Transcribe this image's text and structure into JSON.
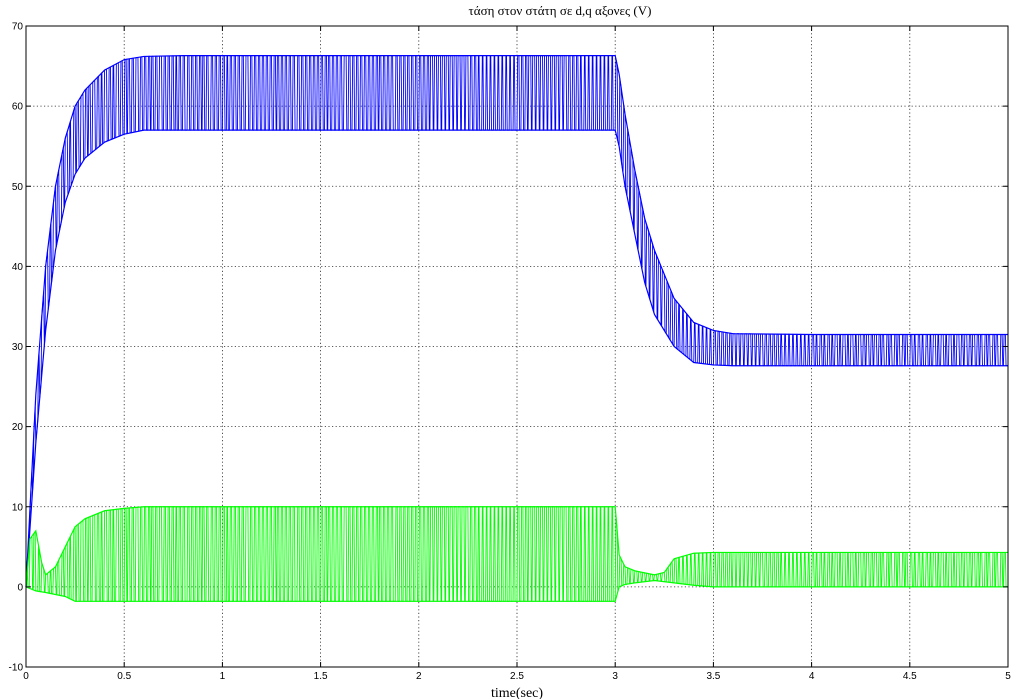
{
  "chart_data": {
    "type": "line",
    "title": "τάση στον στάτη σε d,q αξονες  (V)",
    "xlabel": "time(sec)",
    "ylabel": "",
    "xlim": [
      0,
      5
    ],
    "ylim": [
      -10,
      70
    ],
    "xticks": [
      0,
      0.5,
      1,
      1.5,
      2,
      2.5,
      3,
      3.5,
      4,
      4.5,
      5
    ],
    "xtick_labels": [
      "0",
      "0.5",
      "1",
      "1.5",
      "2",
      "2.5",
      "3",
      "3.5",
      "4",
      "4.5",
      "5"
    ],
    "yticks": [
      -10,
      0,
      10,
      20,
      30,
      40,
      50,
      60,
      70
    ],
    "ytick_labels": [
      "-10",
      "0",
      "10",
      "20",
      "30",
      "40",
      "50",
      "60",
      "70"
    ],
    "grid": true,
    "series": [
      {
        "color": "#0000ff",
        "description": "oscillating signal; upper envelope / lower envelope in V",
        "upper_envelope": {
          "x": [
            0,
            0.05,
            0.1,
            0.15,
            0.2,
            0.25,
            0.3,
            0.4,
            0.5,
            0.6,
            0.8,
            1.0,
            2.0,
            3.0,
            3.02,
            3.05,
            3.1,
            3.15,
            3.2,
            3.3,
            3.4,
            3.5,
            3.6,
            4.0,
            5.0
          ],
          "y": [
            0,
            24,
            40,
            50,
            56,
            60,
            62,
            64.5,
            65.8,
            66.2,
            66.3,
            66.3,
            66.3,
            66.3,
            64,
            59,
            52,
            46,
            42,
            36,
            33,
            32,
            31.6,
            31.5,
            31.5
          ]
        },
        "lower_envelope": {
          "x": [
            0,
            0.05,
            0.1,
            0.15,
            0.2,
            0.25,
            0.3,
            0.4,
            0.5,
            0.6,
            0.8,
            1.0,
            2.0,
            3.0,
            3.02,
            3.05,
            3.1,
            3.15,
            3.2,
            3.3,
            3.4,
            3.5,
            3.6,
            4.0,
            5.0
          ],
          "y": [
            0,
            18,
            32,
            42,
            48,
            51.5,
            53.5,
            55.5,
            56.5,
            57,
            57,
            57,
            57,
            57,
            55,
            50,
            44,
            38,
            34,
            30,
            28,
            27.7,
            27.6,
            27.6,
            27.6
          ]
        }
      },
      {
        "color": "#00ff00",
        "description": "oscillating signal; upper envelope / lower envelope in V",
        "upper_envelope": {
          "x": [
            0,
            0.02,
            0.05,
            0.08,
            0.1,
            0.15,
            0.2,
            0.25,
            0.3,
            0.4,
            0.5,
            0.6,
            1.0,
            2.0,
            3.0,
            3.02,
            3.05,
            3.1,
            3.2,
            3.25,
            3.3,
            3.4,
            3.5,
            4.0,
            5.0
          ],
          "y": [
            0,
            6,
            7,
            3,
            1.5,
            2.5,
            5,
            7.5,
            8.5,
            9.5,
            9.8,
            10,
            10,
            10,
            10,
            4,
            2.5,
            2,
            1.5,
            1.8,
            3.5,
            4.2,
            4.3,
            4.3,
            4.3
          ]
        },
        "lower_envelope": {
          "x": [
            0,
            0.05,
            0.1,
            0.2,
            0.25,
            0.3,
            0.5,
            1.0,
            2.0,
            3.0,
            3.02,
            3.05,
            3.1,
            3.2,
            3.3,
            3.4,
            3.5,
            4.0,
            5.0
          ],
          "y": [
            0,
            -0.5,
            -0.7,
            -1.2,
            -1.8,
            -1.8,
            -1.8,
            -1.8,
            -1.8,
            -1.8,
            0,
            0.3,
            0.5,
            0.8,
            0.5,
            0.2,
            0,
            0,
            0
          ]
        }
      }
    ]
  }
}
